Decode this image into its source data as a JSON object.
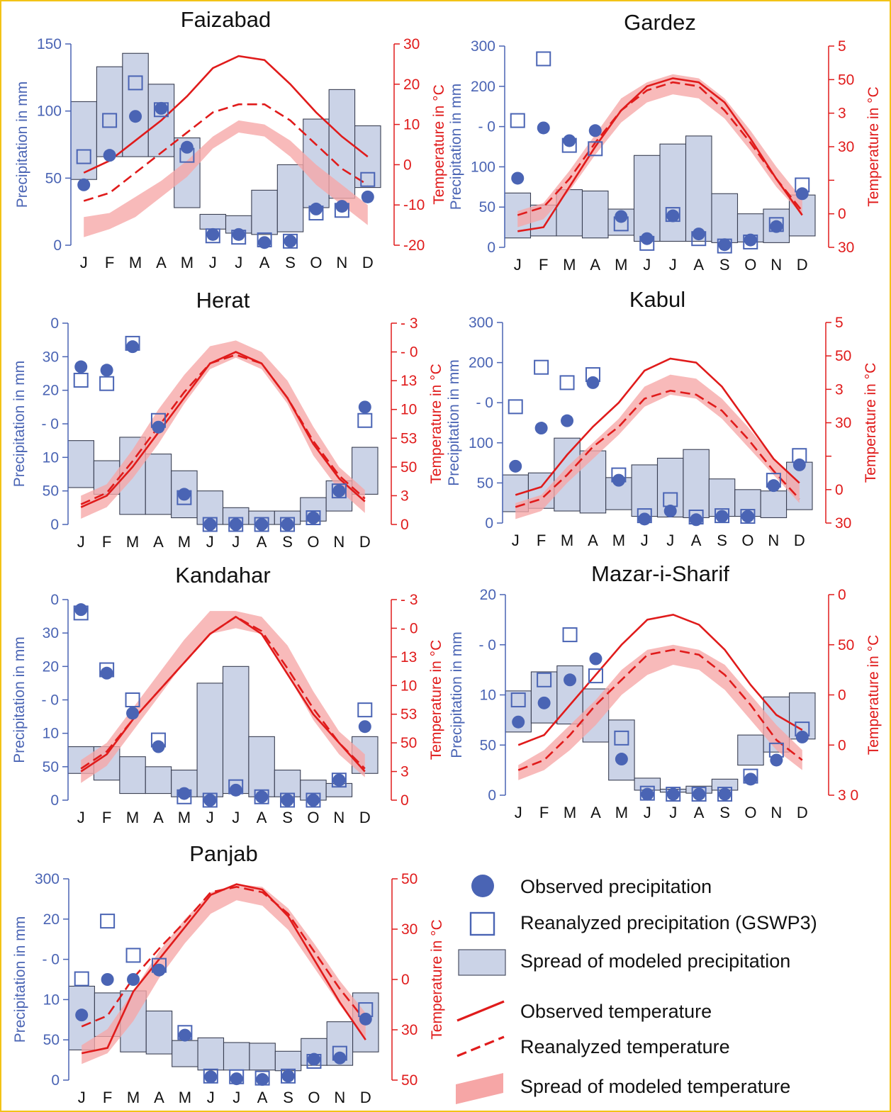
{
  "legend": {
    "observed_precipitation": "Observed precipitation",
    "reanalyzed_precipitation": "Reanalyzed precipitation (GSWP3)",
    "modeled_precipitation": "Spread of modeled precipitation",
    "observed_temperature": "Observed temperature",
    "reanalyzed_temperature": "Reanalyzed temperature",
    "modeled_temperature": "Spread of modeled temperature"
  },
  "colors": {
    "precip": "#4a64b4",
    "box_fill": "#cbd3e7",
    "temp": "#e01b1b",
    "band": "#f6a6a6",
    "frame": "#f3c316"
  },
  "chart_data": [
    {
      "type": "bar",
      "title": "Faizabad",
      "categories": [
        "J",
        "F",
        "M",
        "A",
        "M",
        "J",
        "J",
        "A",
        "S",
        "O",
        "N",
        "D"
      ],
      "ylabel": "Precipitation in mm",
      "y2label": "Temperature in °C",
      "ylim": [
        0,
        150
      ],
      "y2lim": [
        -20,
        30
      ],
      "precip_ticks": [
        "0",
        "50",
        "100",
        "150"
      ],
      "temp_ticks": [
        "-20",
        "-10",
        "0",
        "10",
        "20",
        "30"
      ],
      "observed_precipitation": [
        45,
        67,
        96,
        102,
        73,
        8,
        8,
        2,
        3,
        27,
        29,
        36
      ],
      "reanalyzed_precipitation": [
        66,
        93,
        121,
        101,
        67,
        7,
        6,
        4,
        3,
        24,
        26,
        49
      ],
      "modeled_precipitation_range": [
        [
          49,
          107
        ],
        [
          66,
          133
        ],
        [
          66,
          143
        ],
        [
          66,
          120
        ],
        [
          28,
          80
        ],
        [
          12,
          23
        ],
        [
          9,
          22
        ],
        [
          8,
          41
        ],
        [
          10,
          60
        ],
        [
          28,
          94
        ],
        [
          35,
          116
        ],
        [
          43,
          89
        ]
      ],
      "observed_temperature": [
        -2,
        1,
        6,
        11,
        17,
        24,
        27,
        26,
        20,
        13,
        7,
        2
      ],
      "reanalyzed_temperature": [
        -9,
        -7,
        -2,
        3,
        8,
        13,
        15,
        15,
        11,
        5,
        -1,
        -5
      ],
      "modeled_temperature_range": [
        [
          -18,
          -13
        ],
        [
          -16,
          -12
        ],
        [
          -13,
          -8
        ],
        [
          -8,
          -4
        ],
        [
          -3,
          1
        ],
        [
          4,
          7
        ],
        [
          8,
          11
        ],
        [
          7,
          10
        ],
        [
          2,
          6
        ],
        [
          -5,
          0
        ],
        [
          -10,
          -5
        ],
        [
          -15,
          -10
        ]
      ]
    },
    {
      "type": "bar",
      "title": "Gardez",
      "categories": [
        "J",
        "F",
        "M",
        "A",
        "M",
        "J",
        "J",
        "A",
        "S",
        "O",
        "N",
        "D"
      ],
      "ylabel": "Precipitation in mm",
      "y2label": "Temperature in °C",
      "ylim": [
        0,
        300
      ],
      "y2lim": [
        -10,
        40
      ],
      "precip_ticks": [
        "0",
        "50",
        "100",
        "- 0",
        "200",
        "300"
      ],
      "temp_ticks": [
        "30",
        "0",
        "",
        "30",
        "3",
        "50",
        "5"
      ],
      "observed_precipitation": [
        103,
        178,
        159,
        174,
        46,
        13,
        47,
        20,
        4,
        11,
        31,
        80
      ],
      "reanalyzed_precipitation": [
        189,
        281,
        152,
        147,
        35,
        6,
        49,
        13,
        2,
        8,
        34,
        93
      ],
      "modeled_precipitation_range": [
        [
          14,
          81
        ],
        [
          17,
          63
        ],
        [
          17,
          86
        ],
        [
          14,
          84
        ],
        [
          18,
          57
        ],
        [
          9,
          137
        ],
        [
          9,
          154
        ],
        [
          9,
          166
        ],
        [
          7,
          80
        ],
        [
          8,
          50
        ],
        [
          7,
          57
        ],
        [
          17,
          78
        ]
      ],
      "observed_temperature": [
        -6,
        -5,
        5,
        15,
        24,
        30,
        32,
        31,
        26,
        17,
        7,
        -2
      ],
      "reanalyzed_temperature": [
        -2,
        0,
        7,
        16,
        24,
        29,
        31,
        30,
        24,
        16,
        7,
        -1
      ],
      "modeled_temperature_range": [
        [
          -5,
          -1
        ],
        [
          -3,
          1
        ],
        [
          4,
          9
        ],
        [
          13,
          18
        ],
        [
          21,
          27
        ],
        [
          26,
          31
        ],
        [
          28,
          33
        ],
        [
          27,
          32
        ],
        [
          22,
          27
        ],
        [
          14,
          19
        ],
        [
          5,
          10
        ],
        [
          -2,
          2
        ]
      ]
    },
    {
      "type": "bar",
      "title": "Herat",
      "categories": [
        "J",
        "F",
        "M",
        "A",
        "M",
        "J",
        "J",
        "A",
        "S",
        "O",
        "N",
        "D"
      ],
      "ylabel": "Precipitation in mm",
      "y2label": "Temperature in °C",
      "ylim": [
        0,
        60
      ],
      "y2lim": [
        0,
        35
      ],
      "precip_ticks": [
        "0",
        "50",
        "10",
        "- 0",
        "20",
        "30",
        "0"
      ],
      "temp_ticks": [
        "0",
        "3",
        "50",
        "53",
        "10",
        "13",
        "- 0",
        "- 3"
      ],
      "observed_precipitation": [
        47,
        46,
        53,
        29,
        9,
        0,
        0,
        0,
        0,
        2,
        10,
        35
      ],
      "reanalyzed_precipitation": [
        43,
        42,
        54,
        31,
        8,
        0,
        0,
        0,
        0,
        2,
        10,
        31
      ],
      "modeled_precipitation_range": [
        [
          11,
          25
        ],
        [
          9,
          19
        ],
        [
          3,
          26
        ],
        [
          3,
          21
        ],
        [
          2,
          16
        ],
        [
          0,
          10
        ],
        [
          0,
          5
        ],
        [
          0,
          4
        ],
        [
          0,
          4
        ],
        [
          1,
          8
        ],
        [
          4,
          13
        ],
        [
          9,
          23
        ]
      ],
      "observed_temperature": [
        3,
        5,
        10,
        16,
        22,
        28,
        30,
        28,
        22,
        14,
        8,
        4
      ],
      "reanalyzed_temperature": [
        3.5,
        5.5,
        11,
        17,
        23,
        28,
        29.5,
        28,
        22,
        14.5,
        8.5,
        4.5
      ],
      "modeled_temperature_range": [
        [
          1,
          5
        ],
        [
          3,
          7
        ],
        [
          8,
          13
        ],
        [
          14,
          20
        ],
        [
          21,
          26
        ],
        [
          27,
          31
        ],
        [
          29,
          32
        ],
        [
          27,
          30
        ],
        [
          21,
          25
        ],
        [
          12,
          17
        ],
        [
          6,
          10
        ],
        [
          2,
          6
        ]
      ]
    },
    {
      "type": "bar",
      "title": "Kabul",
      "categories": [
        "J",
        "F",
        "M",
        "A",
        "M",
        "J",
        "J",
        "A",
        "S",
        "O",
        "N",
        "D"
      ],
      "ylabel": "Precipitation in mm",
      "y2label": "Temperature in °C",
      "ylim": [
        0,
        300
      ],
      "y2lim": [
        -10,
        40
      ],
      "precip_ticks": [
        "0",
        "50",
        "100",
        "- 0",
        "200",
        "300"
      ],
      "temp_ticks": [
        "30",
        "0",
        "",
        "30",
        "3",
        "50",
        "5"
      ],
      "observed_precipitation": [
        85,
        142,
        153,
        210,
        64,
        6,
        18,
        5,
        10,
        10,
        56,
        87
      ],
      "reanalyzed_precipitation": [
        174,
        233,
        210,
        222,
        72,
        11,
        35,
        9,
        11,
        10,
        64,
        101
      ],
      "modeled_precipitation_range": [
        [
          17,
          72
        ],
        [
          22,
          75
        ],
        [
          18,
          127
        ],
        [
          15,
          108
        ],
        [
          20,
          68
        ],
        [
          10,
          87
        ],
        [
          9,
          97
        ],
        [
          8,
          110
        ],
        [
          10,
          66
        ],
        [
          10,
          50
        ],
        [
          8,
          48
        ],
        [
          20,
          91
        ]
      ],
      "observed_temperature": [
        -3,
        -1,
        7,
        14,
        20,
        28,
        31,
        30,
        24,
        15,
        6,
        0
      ],
      "reanalyzed_temperature": [
        -6,
        -4,
        2,
        9,
        14,
        21,
        23,
        22,
        18,
        11,
        3,
        -4
      ],
      "modeled_temperature_range": [
        [
          -9,
          -5
        ],
        [
          -7,
          -3
        ],
        [
          0,
          4
        ],
        [
          6,
          10
        ],
        [
          12,
          16
        ],
        [
          19,
          24
        ],
        [
          22,
          27
        ],
        [
          21,
          26
        ],
        [
          16,
          21
        ],
        [
          9,
          14
        ],
        [
          2,
          6
        ],
        [
          -5,
          0
        ]
      ]
    },
    {
      "type": "bar",
      "title": "Kandahar",
      "categories": [
        "J",
        "F",
        "M",
        "A",
        "M",
        "J",
        "J",
        "A",
        "S",
        "O",
        "N",
        "D"
      ],
      "ylabel": "Precipitation in mm",
      "y2label": "Temperature in °C",
      "ylim": [
        0,
        60
      ],
      "y2lim": [
        0,
        35
      ],
      "precip_ticks": [
        "0",
        "50",
        "10",
        "- 0",
        "20",
        "30",
        "0"
      ],
      "temp_ticks": [
        "0",
        "3",
        "50",
        "53",
        "10",
        "13",
        "- 0",
        "- 3"
      ],
      "observed_precipitation": [
        57,
        38,
        26,
        16,
        2,
        0,
        3,
        1,
        0,
        0,
        6,
        22
      ],
      "reanalyzed_precipitation": [
        56,
        39,
        30,
        18,
        1,
        0,
        4,
        1,
        0,
        0,
        6,
        27
      ],
      "modeled_precipitation_range": [
        [
          8,
          16
        ],
        [
          6,
          16
        ],
        [
          2,
          13
        ],
        [
          2,
          10
        ],
        [
          1,
          9
        ],
        [
          1,
          35
        ],
        [
          2,
          40
        ],
        [
          1,
          19
        ],
        [
          1,
          9
        ],
        [
          0,
          6
        ],
        [
          1,
          5
        ],
        [
          8,
          19
        ]
      ],
      "observed_temperature": [
        5,
        8,
        14,
        19,
        24,
        29,
        32,
        29,
        22,
        15,
        10,
        5
      ],
      "reanalyzed_temperature": [
        5.5,
        8.5,
        14,
        19,
        24,
        29,
        32,
        29.5,
        23,
        16,
        10,
        5.5
      ],
      "modeled_temperature_range": [
        [
          3,
          7
        ],
        [
          6,
          10
        ],
        [
          12,
          16
        ],
        [
          18,
          22
        ],
        [
          24,
          28
        ],
        [
          29,
          33
        ],
        [
          30,
          33
        ],
        [
          29,
          32
        ],
        [
          22,
          27
        ],
        [
          14,
          19
        ],
        [
          8,
          12
        ],
        [
          4,
          8
        ]
      ]
    },
    {
      "type": "bar",
      "title": "Mazar-i-Sharif",
      "categories": [
        "J",
        "F",
        "M",
        "A",
        "M",
        "J",
        "J",
        "A",
        "S",
        "O",
        "N",
        "D"
      ],
      "ylabel": "Precipitation in mm",
      "y2label": "Temperature in °C",
      "ylim": [
        0,
        200
      ],
      "y2lim": [
        -5,
        35
      ],
      "precip_ticks": [
        "0",
        "50",
        "10",
        "- 0",
        "20"
      ],
      "temp_ticks": [
        "3 0",
        "0",
        "0",
        "50",
        "0"
      ],
      "observed_precipitation": [
        73,
        92,
        115,
        136,
        36,
        1,
        1,
        1,
        1,
        16,
        35,
        58
      ],
      "reanalyzed_precipitation": [
        95,
        115,
        160,
        119,
        57,
        2,
        1,
        1,
        1,
        19,
        45,
        66
      ],
      "modeled_precipitation_range": [
        [
          63,
          104
        ],
        [
          72,
          123
        ],
        [
          71,
          129
        ],
        [
          53,
          106
        ],
        [
          15,
          75
        ],
        [
          5,
          17
        ],
        [
          3,
          6
        ],
        [
          2,
          9
        ],
        [
          5,
          16
        ],
        [
          30,
          60
        ],
        [
          43,
          98
        ],
        [
          56,
          102
        ]
      ],
      "observed_temperature": [
        5,
        7,
        13,
        19,
        25,
        30,
        31,
        29,
        24,
        17,
        11,
        8
      ],
      "reanalyzed_temperature": [
        0,
        2,
        7,
        13,
        18,
        23,
        24,
        23,
        19,
        13,
        6,
        2
      ],
      "modeled_temperature_range": [
        [
          -2,
          1
        ],
        [
          0,
          4
        ],
        [
          4,
          9
        ],
        [
          9,
          14
        ],
        [
          15,
          20
        ],
        [
          19,
          24
        ],
        [
          21,
          25
        ],
        [
          20,
          24
        ],
        [
          16,
          21
        ],
        [
          10,
          15
        ],
        [
          4,
          9
        ],
        [
          0,
          4
        ]
      ]
    },
    {
      "type": "bar",
      "title": "Panjab",
      "categories": [
        "J",
        "F",
        "M",
        "A",
        "M",
        "J",
        "J",
        "A",
        "S",
        "O",
        "N",
        "D"
      ],
      "ylabel": "Precipitation in mm",
      "y2label": "Temperature in °C",
      "ylim": [
        0,
        300
      ],
      "y2lim": [
        -25,
        50
      ],
      "precip_ticks": [
        "0",
        "50",
        "10",
        "- 0",
        "20",
        "300"
      ],
      "temp_ticks": [
        "50",
        "30",
        "0",
        "30",
        "50"
      ],
      "observed_precipitation": [
        97,
        150,
        150,
        164,
        67,
        5,
        2,
        1,
        6,
        31,
        33,
        91
      ],
      "reanalyzed_precipitation": [
        151,
        237,
        186,
        171,
        71,
        6,
        5,
        3,
        6,
        28,
        40,
        105
      ],
      "modeled_precipitation_range": [
        [
          45,
          140
        ],
        [
          65,
          130
        ],
        [
          42,
          133
        ],
        [
          39,
          103
        ],
        [
          20,
          59
        ],
        [
          15,
          63
        ],
        [
          15,
          56
        ],
        [
          15,
          55
        ],
        [
          14,
          43
        ],
        [
          22,
          62
        ],
        [
          22,
          87
        ],
        [
          42,
          130
        ]
      ],
      "observed_temperature": [
        -15,
        -13,
        8,
        20,
        32,
        44,
        48,
        46,
        36,
        20,
        4,
        -10
      ],
      "reanalyzed_temperature": [
        -5,
        -1,
        13,
        24,
        34,
        45,
        47,
        45,
        37,
        23,
        9,
        -3
      ],
      "modeled_temperature_range": [
        [
          -19,
          -12
        ],
        [
          -15,
          -6
        ],
        [
          -3,
          8
        ],
        [
          13,
          23
        ],
        [
          26,
          35
        ],
        [
          37,
          45
        ],
        [
          42,
          48
        ],
        [
          40,
          47
        ],
        [
          31,
          39
        ],
        [
          17,
          26
        ],
        [
          3,
          12
        ],
        [
          -10,
          0
        ]
      ]
    }
  ]
}
